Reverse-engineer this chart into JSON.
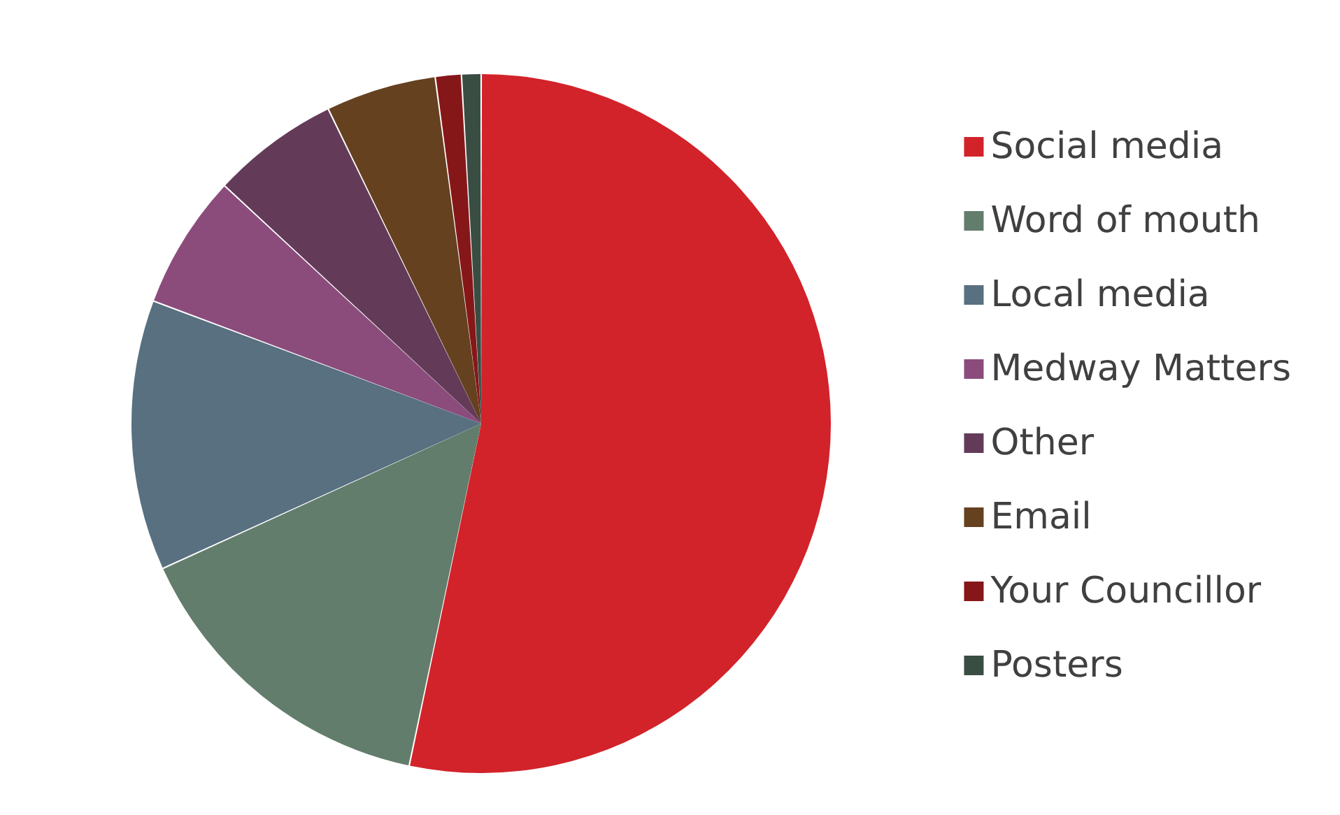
{
  "chart_data": {
    "type": "pie",
    "categories": [
      "Social media",
      "Word of mouth",
      "Local media",
      "Medway Matters",
      "Other",
      "Email",
      "Your Councillor",
      "Posters"
    ],
    "values": [
      53.3,
      14.9,
      12.5,
      6.2,
      5.9,
      5.1,
      1.2,
      0.9
    ],
    "colors": [
      "#d2232a",
      "#637d6d",
      "#587080",
      "#8b4c7c",
      "#633b59",
      "#654120",
      "#861719",
      "#3a4d43"
    ],
    "legend": "right"
  }
}
